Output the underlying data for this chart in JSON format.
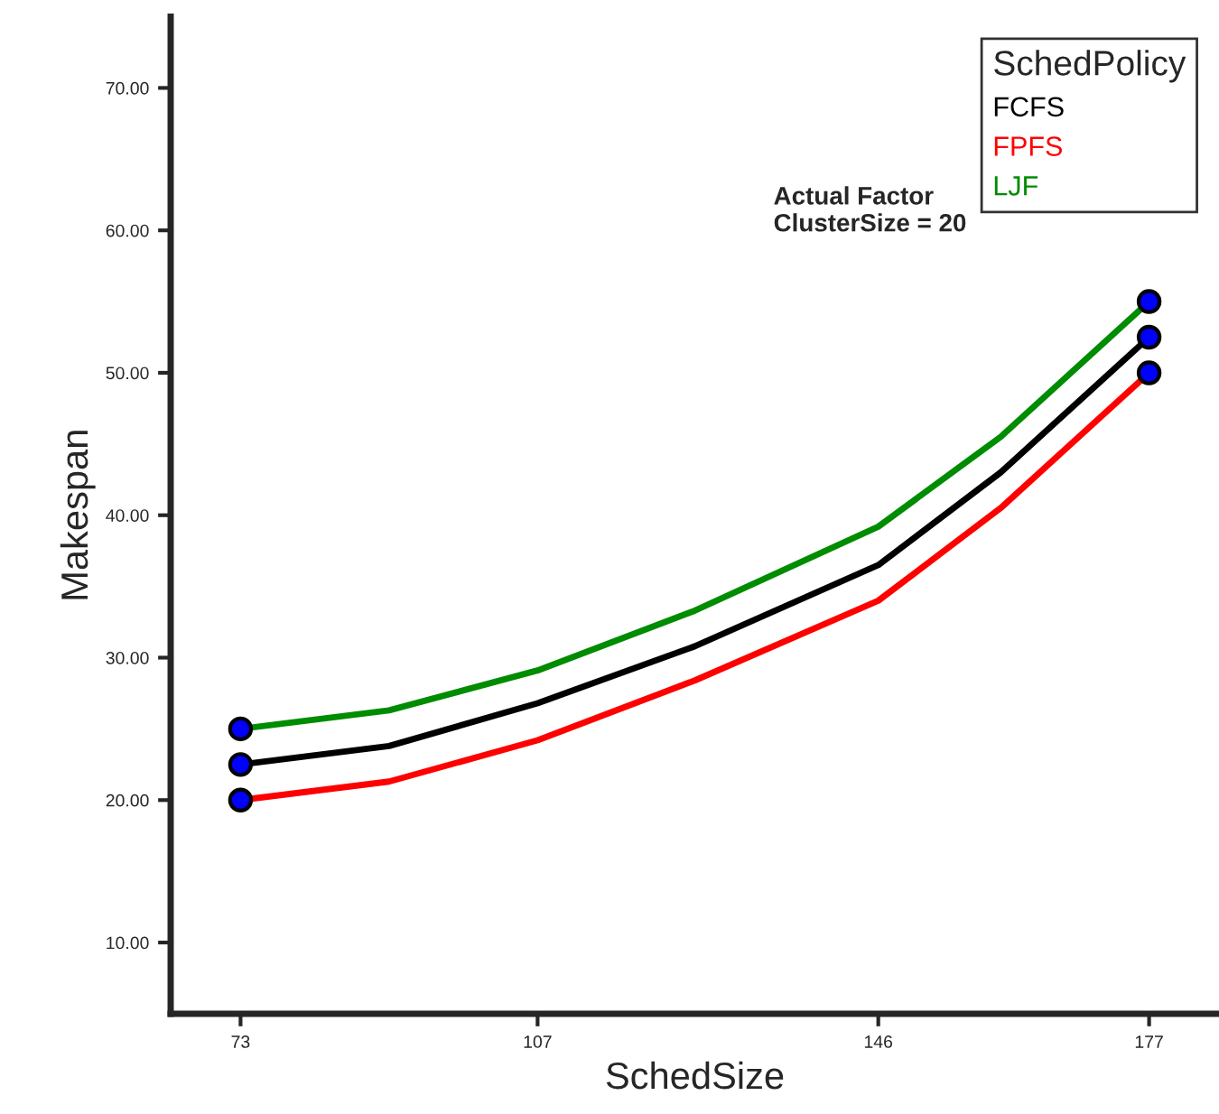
{
  "chart_data": {
    "type": "line",
    "xlabel": "SchedSize",
    "ylabel": "Makespan",
    "legend_title": "SchedPolicy",
    "legend": "top right",
    "xlim": [
      65,
      185
    ],
    "xticks": [
      73,
      107,
      146,
      177
    ],
    "ylim": [
      5,
      75
    ],
    "yticks": [
      {
        "value": 10,
        "label": "10.00"
      },
      {
        "value": 20,
        "label": "20.00"
      },
      {
        "value": 30,
        "label": "30.00"
      },
      {
        "value": 40,
        "label": "40.00"
      },
      {
        "value": 50,
        "label": "50.00"
      },
      {
        "value": 60,
        "label": "60.00"
      },
      {
        "value": 70,
        "label": "70.00"
      }
    ],
    "grid": false,
    "marker": "none",
    "series": [
      {
        "name": "FCFS",
        "color": "#000000",
        "x": [
          73,
          90,
          107,
          125,
          146,
          160,
          177
        ],
        "values": [
          22.5,
          23.8,
          26.8,
          30.8,
          36.5,
          43,
          52.5
        ]
      },
      {
        "name": "FPFS",
        "color": "#ff0000",
        "x": [
          73,
          90,
          107,
          125,
          146,
          160,
          177
        ],
        "values": [
          20,
          21.3,
          24.2,
          28.4,
          34,
          40.5,
          50
        ]
      },
      {
        "name": "LJF",
        "color": "#008c00",
        "x": [
          73,
          90,
          107,
          125,
          146,
          160,
          177
        ],
        "values": [
          25,
          26.3,
          29.1,
          33.3,
          39.2,
          45.5,
          55
        ]
      },
      {
        "type": "scatter",
        "color": "#0000ff",
        "marker": "circle",
        "x": [
          73,
          73,
          73,
          177,
          177,
          177
        ],
        "values": [
          22.5,
          20,
          25,
          52.5,
          50,
          55
        ]
      }
    ],
    "annotations": [
      {
        "text": "Actual Factor\nClusterSize = 20"
      }
    ]
  }
}
